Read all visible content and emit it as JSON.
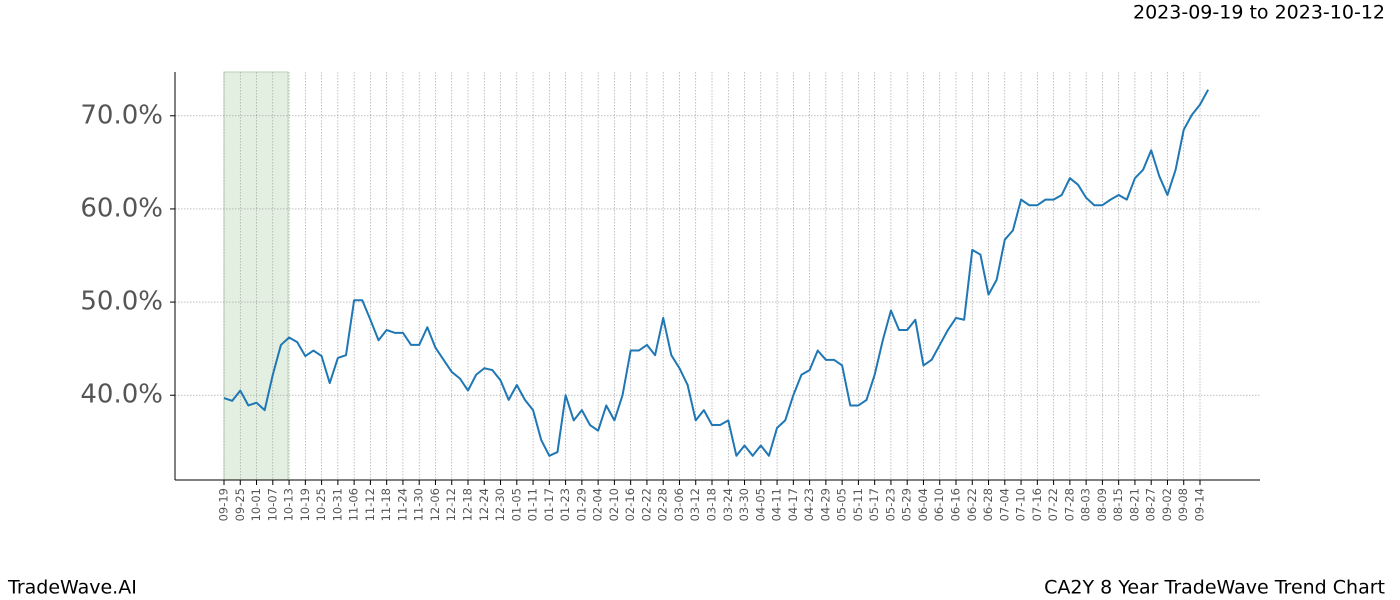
{
  "chart_data": {
    "type": "line",
    "date_range": "2023-09-19 to 2023-10-12",
    "brand": "TradeWave.AI",
    "title": "CA2Y 8 Year TradeWave Trend Chart",
    "categories": [
      "09-19",
      null,
      "09-25",
      null,
      "10-01",
      null,
      "10-07",
      null,
      "10-13",
      null,
      "10-19",
      null,
      "10-25",
      null,
      "10-31",
      null,
      "11-06",
      null,
      "11-12",
      null,
      "11-18",
      null,
      "11-24",
      null,
      "11-30",
      null,
      "12-06",
      null,
      "12-12",
      null,
      "12-18",
      null,
      "12-24",
      null,
      "12-30",
      null,
      "01-05",
      null,
      "01-11",
      null,
      "01-17",
      null,
      "01-23",
      null,
      "01-29",
      null,
      "02-04",
      null,
      "02-10",
      null,
      "02-16",
      null,
      "02-22",
      null,
      "02-28",
      null,
      "03-06",
      null,
      "03-12",
      null,
      "03-18",
      null,
      "03-24",
      null,
      "03-30",
      null,
      "04-05",
      null,
      "04-11",
      null,
      "04-17",
      null,
      "04-23",
      null,
      "04-29",
      null,
      "05-05",
      null,
      "05-11",
      null,
      "05-17",
      null,
      "05-23",
      null,
      "05-29",
      null,
      "06-04",
      null,
      "06-10",
      null,
      "06-16",
      null,
      "06-22",
      null,
      "06-28",
      null,
      "07-04",
      null,
      "07-10",
      null,
      "07-16",
      null,
      "07-22",
      null,
      "07-28",
      null,
      "08-03",
      null,
      "08-09",
      null,
      "08-15",
      null,
      "08-21",
      null,
      "08-27",
      null,
      "09-02",
      null,
      "09-08",
      null,
      "09-14",
      null
    ],
    "values": [
      39.7,
      39.4,
      40.5,
      38.9,
      39.2,
      38.4,
      42.2,
      45.4,
      46.2,
      45.7,
      44.2,
      44.8,
      44.2,
      41.3,
      44.0,
      44.3,
      50.2,
      50.2,
      48.1,
      45.9,
      47.0,
      46.7,
      46.7,
      45.4,
      45.4,
      47.3,
      45.1,
      43.8,
      42.5,
      41.8,
      40.5,
      42.2,
      42.9,
      42.7,
      41.6,
      39.5,
      41.1,
      39.5,
      38.4,
      35.2,
      33.5,
      33.9,
      40.0,
      37.3,
      38.4,
      36.8,
      36.2,
      38.9,
      37.3,
      40.0,
      44.8,
      44.8,
      45.4,
      44.3,
      48.3,
      44.3,
      42.9,
      41.1,
      37.3,
      38.4,
      36.8,
      36.8,
      37.3,
      33.5,
      34.6,
      33.5,
      34.6,
      33.5,
      36.5,
      37.3,
      40.0,
      42.2,
      42.7,
      44.8,
      43.8,
      43.8,
      43.2,
      38.9,
      38.9,
      39.5,
      42.2,
      45.9,
      49.1,
      47.0,
      47.0,
      48.1,
      43.2,
      43.8,
      45.4,
      47.0,
      48.3,
      48.1,
      55.6,
      55.1,
      50.8,
      52.4,
      56.7,
      57.7,
      61.0,
      60.4,
      60.4,
      61.0,
      61.0,
      61.5,
      63.3,
      62.6,
      61.2,
      60.4,
      60.4,
      61.0,
      61.5,
      61.0,
      63.3,
      64.2,
      66.3,
      63.5,
      61.5,
      64.2,
      68.5,
      70.1,
      71.2,
      72.8
    ],
    "color": "#1f77b4",
    "ylim": [
      30.9,
      74.7
    ],
    "yticks": [
      {
        "value": 40,
        "label": "40.0%"
      },
      {
        "value": 50,
        "label": "50.0%"
      },
      {
        "value": 60,
        "label": "60.0%"
      },
      {
        "value": 70,
        "label": "70.0%"
      }
    ],
    "grid": true
  }
}
